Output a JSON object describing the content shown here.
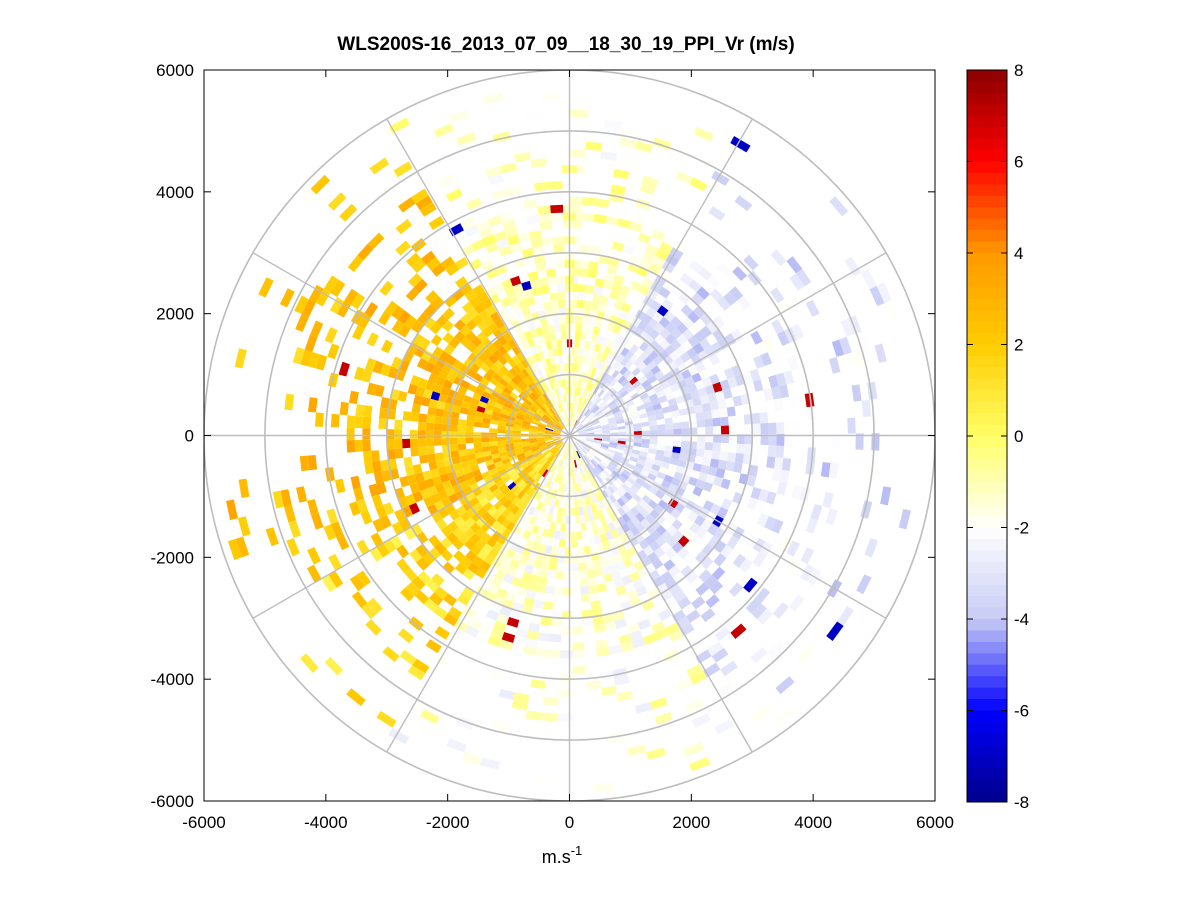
{
  "chart_data": {
    "type": "heatmap",
    "subtype": "polar-ppi",
    "title": "WLS200S-16_2013_07_09__18_30_19_PPI_Vr (m/s)",
    "xlabel": "m.s",
    "xlabel_superscript": "-1",
    "ylabel": "",
    "xlim": [
      -6000,
      6000
    ],
    "ylim": [
      -6000,
      6000
    ],
    "xticks": [
      -6000,
      -4000,
      -2000,
      0,
      2000,
      4000,
      6000
    ],
    "yticks": [
      -6000,
      -4000,
      -2000,
      0,
      2000,
      4000,
      6000
    ],
    "xtick_labels": [
      "-6000",
      "-4000",
      "-2000",
      "0",
      "2000",
      "4000",
      "6000"
    ],
    "ytick_labels": [
      "6000",
      "4000",
      "2000",
      "0",
      "-2000",
      "-4000",
      "-6000"
    ],
    "range_rings_m": [
      1000,
      2000,
      3000,
      4000,
      5000,
      6000
    ],
    "spoke_angles_deg": [
      0,
      30,
      60,
      90,
      120,
      150,
      180,
      210,
      240,
      270,
      300,
      330
    ],
    "colorbar": {
      "range": [
        -8,
        8
      ],
      "ticks": [
        8,
        6,
        4,
        2,
        0,
        -2,
        -4,
        -6,
        -8
      ],
      "tick_labels": [
        "8",
        "6",
        "4",
        "2",
        "0",
        "-2",
        "-4",
        "-6",
        "-8"
      ],
      "colormap": [
        "#00008b",
        "#0000ff",
        "#c8ccf4",
        "#ffffff",
        "#ffff66",
        "#ffcc00",
        "#ff9900",
        "#ff0000",
        "#8b0000"
      ]
    },
    "velocity_field_approx": [
      {
        "sector": "west-northwest (240-330 deg)",
        "vr_range_m_s": [
          1,
          4
        ]
      },
      {
        "sector": "north-northeast (330-30 deg)",
        "vr_range_m_s": [
          -2,
          1
        ]
      },
      {
        "sector": "east (30-150 deg)",
        "vr_range_m_s": [
          -4,
          -1
        ]
      },
      {
        "sector": "south (150-210 deg)",
        "vr_range_m_s": [
          -3,
          1
        ]
      },
      {
        "sector": "southwest (210-240 deg)",
        "vr_range_m_s": [
          0,
          3
        ]
      }
    ],
    "max_data_range_m": 5800,
    "outliers_m_s": [
      7,
      7,
      -7
    ]
  }
}
